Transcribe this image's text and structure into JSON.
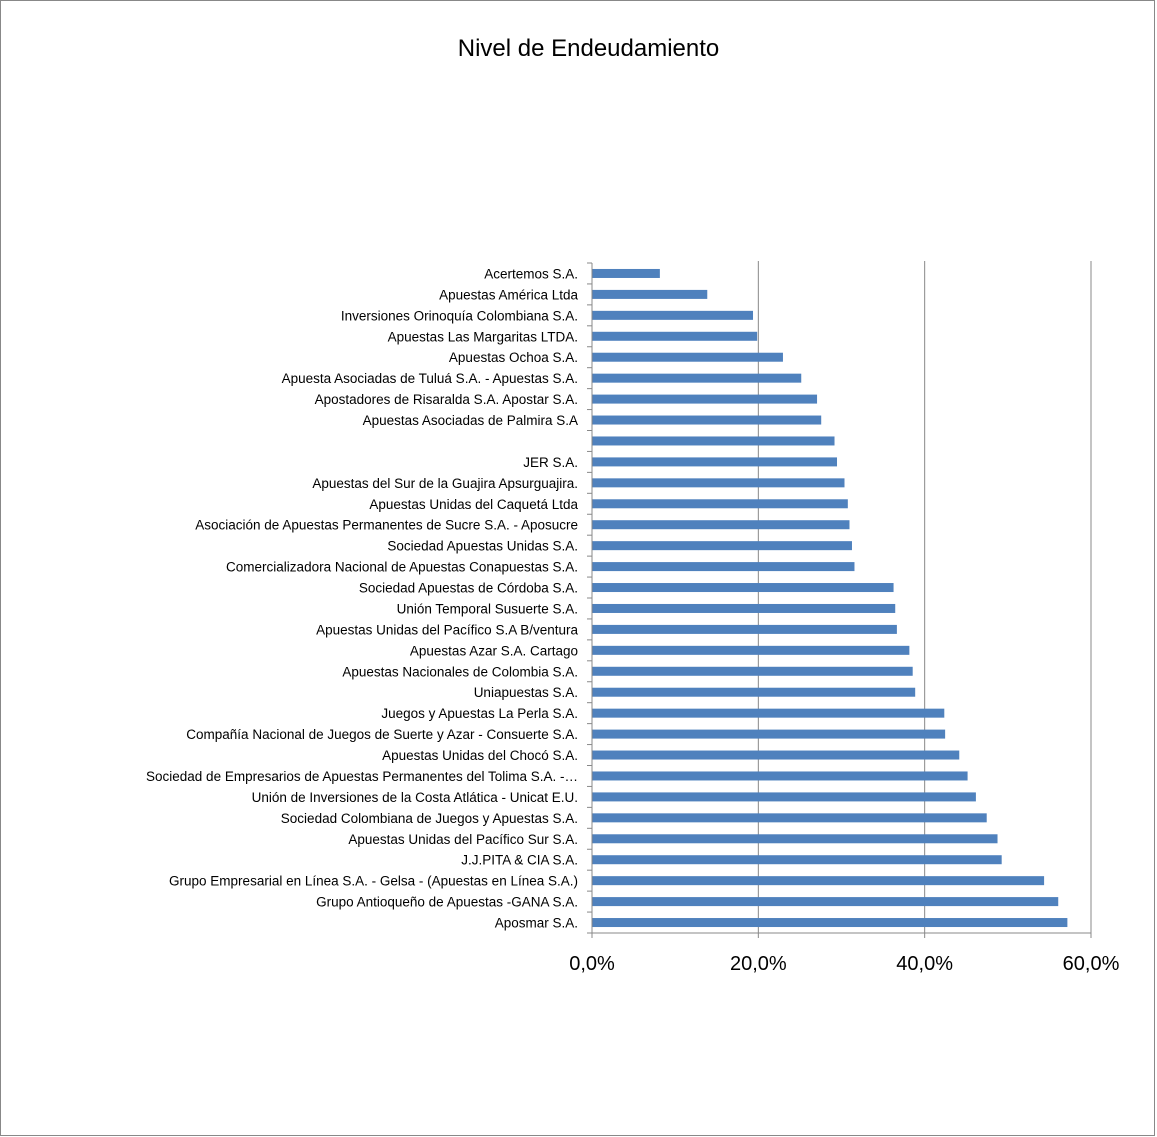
{
  "chart_data": {
    "type": "bar",
    "orientation": "horizontal",
    "title": "Nivel de Endeudamiento",
    "xlabel": "",
    "ylabel": "",
    "xlim": [
      0,
      0.6
    ],
    "x_ticks": [
      "0,0%",
      "20,0%",
      "40,0%",
      "60,0%"
    ],
    "grid": "vertical",
    "bar_color": "#4F81BD",
    "categories": [
      "Acertemos S.A.",
      "Apuestas América Ltda",
      "Inversiones Orinoquía Colombiana S.A.",
      "Apuestas Las Margaritas LTDA.",
      "Apuestas Ochoa S.A.",
      "Apuesta Asociadas de Tuluá S.A. - Apuestas S.A.",
      "Apostadores de Risaralda S.A. Apostar S.A.",
      "Apuestas Asociadas de Palmira S.A",
      "",
      "JER S.A.",
      "Apuestas del Sur de la Guajira Apsurguajira.",
      "Apuestas Unidas del Caquetá Ltda",
      "Asociación de Apuestas Permanentes de Sucre S.A. - Aposucre",
      "Sociedad Apuestas Unidas S.A.",
      "Comercializadora Nacional de Apuestas Conapuestas S.A.",
      "Sociedad Apuestas de Córdoba S.A.",
      "Unión Temporal Susuerte S.A.",
      "Apuestas Unidas del Pacífico S.A B/ventura",
      "Apuestas Azar S.A. Cartago",
      "Apuestas Nacionales de Colombia S.A.",
      "Uniapuestas S.A.",
      "Juegos y Apuestas La Perla S.A.",
      "Compañía Nacional de Juegos de Suerte y Azar - Consuerte S.A.",
      "Apuestas Unidas del Chocó S.A.",
      "Sociedad de Empresarios de Apuestas Permanentes del Tolima S.A. -…",
      "Unión de Inversiones de la Costa Atlática - Unicat E.U.",
      "Sociedad Colombiana de Juegos y Apuestas S.A.",
      "Apuestas Unidas del Pacífico Sur S.A.",
      "J.J.PITA & CIA S.A.",
      "Grupo Empresarial en Línea S.A. - Gelsa - (Apuestas en Línea S.A.)",
      "Grupo Antioqueño de Apuestas -GANA S.A.",
      "Aposmar S.A."
    ],
    "values": [
      0.081,
      0.138,
      0.193,
      0.198,
      0.229,
      0.251,
      0.27,
      0.275,
      0.291,
      0.294,
      0.303,
      0.307,
      0.309,
      0.312,
      0.315,
      0.362,
      0.364,
      0.366,
      0.381,
      0.385,
      0.388,
      0.423,
      0.424,
      0.441,
      0.451,
      0.461,
      0.474,
      0.487,
      0.492,
      0.543,
      0.56,
      0.571
    ]
  }
}
